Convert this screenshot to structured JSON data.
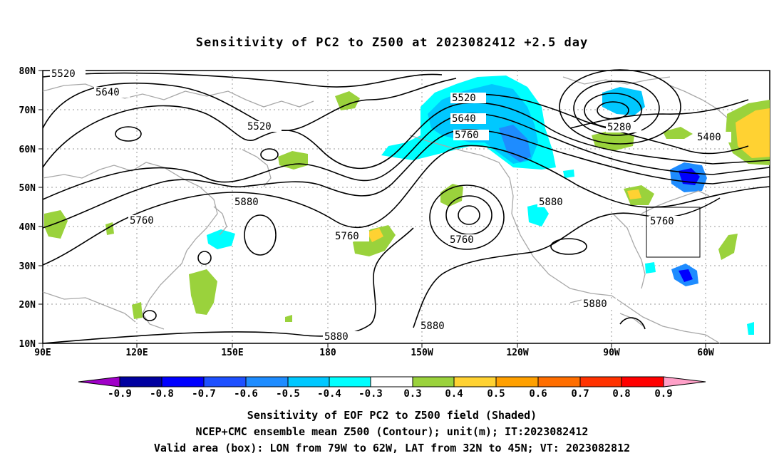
{
  "title": "Sensitivity of PC2 to Z500 at 2023082412 +2.5 day",
  "lat_labels": [
    "80N",
    "70N",
    "60N",
    "50N",
    "40N",
    "30N",
    "20N",
    "10N"
  ],
  "lon_labels": [
    "90E",
    "120E",
    "150E",
    "180",
    "150W",
    "120W",
    "90W",
    "60W"
  ],
  "contour_labels": [
    {
      "text": "5520",
      "region": "top-left"
    },
    {
      "text": "5640",
      "region": "north-pacific-west"
    },
    {
      "text": "5520",
      "region": "kamchatka"
    },
    {
      "text": "5520",
      "region": "gulf-of-alaska-top"
    },
    {
      "text": "5640",
      "region": "gulf-of-alaska"
    },
    {
      "text": "5760",
      "region": "gulf-of-alaska"
    },
    {
      "text": "5280",
      "region": "hudson-bay-low"
    },
    {
      "text": "5400",
      "region": "northeast-atlantic"
    },
    {
      "text": "5760",
      "region": "east-asia"
    },
    {
      "text": "5880",
      "region": "west-pacific"
    },
    {
      "text": "5760",
      "region": "central-pacific"
    },
    {
      "text": "5760",
      "region": "subtropical-pacific-high"
    },
    {
      "text": "5880",
      "region": "southwest-us"
    },
    {
      "text": "5760",
      "region": "us-east-coast"
    },
    {
      "text": "5880",
      "region": "gulf-of-mexico"
    },
    {
      "text": "5880",
      "region": "tropical-pacific"
    },
    {
      "text": "5880",
      "region": "bottom-center"
    }
  ],
  "valid_box": {
    "lon_from": "79W",
    "lon_to": "62W",
    "lat_from": "32N",
    "lat_to": "45N"
  },
  "colorbar": {
    "labels": [
      "-0.9",
      "-0.8",
      "-0.7",
      "-0.6",
      "-0.5",
      "-0.4",
      "-0.3",
      "0.3",
      "0.4",
      "0.5",
      "0.6",
      "0.7",
      "0.8",
      "0.9"
    ],
    "colors": [
      "#a000c8",
      "#0000a0",
      "#0000ff",
      "#1e50ff",
      "#1e8cff",
      "#00c8ff",
      "#00ffff",
      "#ffffff",
      "#9ad23c",
      "#ffd232",
      "#ffa000",
      "#ff6e00",
      "#ff3200",
      "#ff0000",
      "#ffa0c8"
    ]
  },
  "captions": [
    "Sensitivity of EOF PC2 to Z500 field (Shaded)",
    "NCEP+CMC ensemble mean Z500 (Contour); unit(m); IT:2023082412",
    "Valid area (box): LON from 79W to 62W, LAT from 32N to 45N; VT: 2023082812"
  ]
}
